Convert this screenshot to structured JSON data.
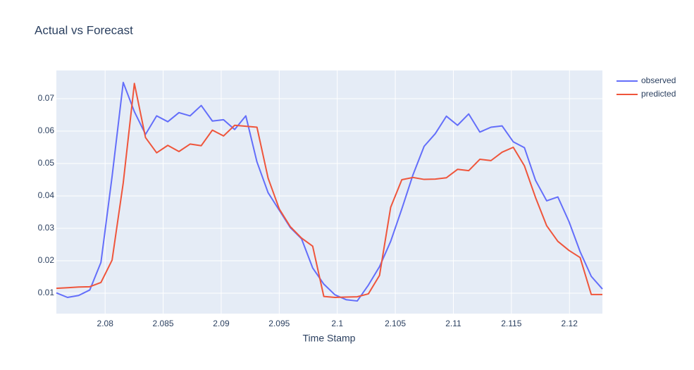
{
  "chart_data": {
    "type": "line",
    "title": "Actual vs Forecast",
    "x_label": "Time Stamp",
    "x": [
      2.0758,
      2.07676,
      2.07772,
      2.07868,
      2.07964,
      2.0806,
      2.08156,
      2.08252,
      2.08348,
      2.08444,
      2.0854,
      2.08636,
      2.08732,
      2.08828,
      2.08924,
      2.0902,
      2.09116,
      2.09212,
      2.09308,
      2.09404,
      2.095,
      2.09596,
      2.09692,
      2.09788,
      2.09884,
      2.0998,
      2.10076,
      2.10172,
      2.10268,
      2.10364,
      2.1046,
      2.10556,
      2.10652,
      2.10748,
      2.10844,
      2.1094,
      2.11036,
      2.11132,
      2.11228,
      2.11324,
      2.1142,
      2.11516,
      2.11612,
      2.11708,
      2.11804,
      2.119,
      2.11996,
      2.12092,
      2.12188,
      2.12284
    ],
    "series": [
      {
        "name": "observed",
        "color": "#636efa",
        "values": [
          0.0101,
          0.0087,
          0.0093,
          0.011,
          0.0195,
          0.046,
          0.075,
          0.066,
          0.059,
          0.0647,
          0.0629,
          0.0657,
          0.0647,
          0.0679,
          0.0631,
          0.0635,
          0.0605,
          0.0647,
          0.0505,
          0.041,
          0.0356,
          0.0302,
          0.0268,
          0.0178,
          0.0128,
          0.0095,
          0.008,
          0.0076,
          0.0125,
          0.0182,
          0.026,
          0.036,
          0.0465,
          0.0553,
          0.0592,
          0.0646,
          0.0618,
          0.0653,
          0.0597,
          0.0612,
          0.0616,
          0.0567,
          0.0549,
          0.0448,
          0.0385,
          0.0397,
          0.0321,
          0.0228,
          0.0152,
          0.0113
        ]
      },
      {
        "name": "predicted",
        "color": "#ef553b",
        "values": [
          0.0115,
          0.0117,
          0.0119,
          0.012,
          0.0133,
          0.0202,
          0.044,
          0.0747,
          0.058,
          0.0533,
          0.0556,
          0.0537,
          0.056,
          0.0555,
          0.0603,
          0.0585,
          0.0618,
          0.0615,
          0.0612,
          0.0455,
          0.036,
          0.0305,
          0.027,
          0.0245,
          0.009,
          0.0087,
          0.0088,
          0.0089,
          0.0098,
          0.0155,
          0.0365,
          0.045,
          0.0457,
          0.0451,
          0.0452,
          0.0456,
          0.0482,
          0.0478,
          0.0513,
          0.0509,
          0.0535,
          0.055,
          0.0493,
          0.0395,
          0.0308,
          0.026,
          0.0232,
          0.021,
          0.0096,
          0.0096
        ]
      }
    ],
    "xlim": [
      2.0758,
      2.12284
    ],
    "xticks": [
      2.08,
      2.085,
      2.09,
      2.095,
      2.1,
      2.105,
      2.11,
      2.115,
      2.12
    ],
    "ylim": [
      0.0037,
      0.0787
    ],
    "yticks": [
      0.01,
      0.02,
      0.03,
      0.04,
      0.05,
      0.06,
      0.07
    ],
    "grid": true,
    "legend": "right"
  }
}
